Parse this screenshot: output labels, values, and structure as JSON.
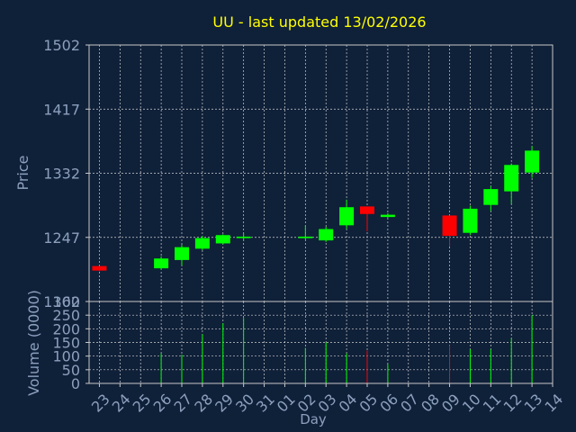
{
  "chart_data": {
    "type": "candlestick",
    "title": "UU - last updated 13/02/2026",
    "price_panel": {
      "ylabel": "Price",
      "ylim": [
        1162,
        1502
      ],
      "yticks": [
        "1502",
        "1417",
        "1332",
        "1247",
        "1162"
      ],
      "grid": true
    },
    "volume_panel": {
      "ylabel": "Volume (0000)",
      "ylim": [
        0,
        300
      ],
      "yticks": [
        "300",
        "250",
        "200",
        "150",
        "100",
        "50",
        "0"
      ],
      "grid": true
    },
    "xlabel": "Day",
    "x": [
      "23",
      "24",
      "25",
      "26",
      "27",
      "28",
      "29",
      "30",
      "31",
      "01",
      "02",
      "03",
      "04",
      "05",
      "06",
      "07",
      "08",
      "09",
      "10",
      "11",
      "12",
      "13",
      "14"
    ],
    "candles": [
      {
        "day": "23",
        "open": 1209,
        "high": 1209,
        "low": 1202,
        "close": 1203,
        "volume": 0
      },
      {
        "day": "26",
        "open": 1206,
        "high": 1222,
        "low": 1204,
        "close": 1219,
        "volume": 110
      },
      {
        "day": "27",
        "open": 1217,
        "high": 1237,
        "low": 1210,
        "close": 1234,
        "volume": 105
      },
      {
        "day": "28",
        "open": 1232,
        "high": 1249,
        "low": 1230,
        "close": 1246,
        "volume": 180
      },
      {
        "day": "29",
        "open": 1239,
        "high": 1251,
        "low": 1238,
        "close": 1250,
        "volume": 220
      },
      {
        "day": "30",
        "open": 1246,
        "high": 1253,
        "low": 1242,
        "close": 1248,
        "volume": 240
      },
      {
        "day": "02",
        "open": 1246,
        "high": 1263,
        "low": 1244,
        "close": 1248,
        "volume": 130
      },
      {
        "day": "03",
        "open": 1243,
        "high": 1261,
        "low": 1241,
        "close": 1258,
        "volume": 150
      },
      {
        "day": "04",
        "open": 1263,
        "high": 1297,
        "low": 1258,
        "close": 1287,
        "volume": 110
      },
      {
        "day": "05",
        "open": 1288,
        "high": 1288,
        "low": 1255,
        "close": 1278,
        "volume": 120
      },
      {
        "day": "06",
        "open": 1274,
        "high": 1279,
        "low": 1273,
        "close": 1277,
        "volume": 70
      },
      {
        "day": "09",
        "open": 1276,
        "high": 1276,
        "low": 1235,
        "close": 1249,
        "volume": 140
      },
      {
        "day": "10",
        "open": 1253,
        "high": 1289,
        "low": 1250,
        "close": 1285,
        "volume": 125
      },
      {
        "day": "11",
        "open": 1290,
        "high": 1315,
        "low": 1282,
        "close": 1311,
        "volume": 125
      },
      {
        "day": "12",
        "open": 1308,
        "high": 1345,
        "low": 1291,
        "close": 1343,
        "volume": 165
      },
      {
        "day": "13",
        "open": 1333,
        "high": 1368,
        "low": 1326,
        "close": 1362,
        "volume": 250
      }
    ],
    "colors": {
      "background": "#0f2039",
      "up": "#00ff00",
      "down": "#ff0000",
      "title": "#ffff00",
      "axis_text": "#8ca0be",
      "grid": "#d0d0d0",
      "frame": "#c8c8c8"
    }
  }
}
